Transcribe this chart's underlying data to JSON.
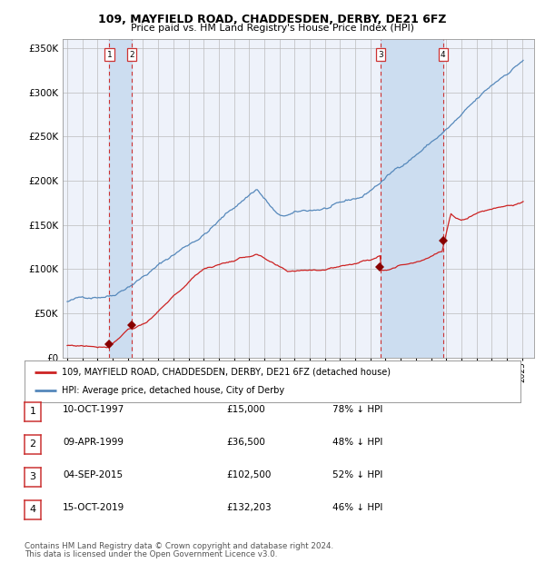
{
  "title_line1": "109, MAYFIELD ROAD, CHADDESDEN, DERBY, DE21 6FZ",
  "title_line2": "Price paid vs. HM Land Registry's House Price Index (HPI)",
  "ylim": [
    0,
    360000
  ],
  "yticks": [
    0,
    50000,
    100000,
    150000,
    200000,
    250000,
    300000,
    350000
  ],
  "xlim_start": 1994.7,
  "xlim_end": 2025.8,
  "background_color": "#ffffff",
  "plot_bg_color": "#eef2fa",
  "grid_color": "#bbbbbb",
  "hpi_color": "#5588bb",
  "price_color": "#cc2222",
  "sale_marker_color": "#880000",
  "vline_color": "#cc3333",
  "span_color": "#ccddf0",
  "transactions": [
    {
      "num": 1,
      "date_label": "10-OCT-1997",
      "year": 1997.78,
      "price": 15000,
      "pct": "78%"
    },
    {
      "num": 2,
      "date_label": "09-APR-1999",
      "year": 1999.27,
      "price": 36500,
      "pct": "48%"
    },
    {
      "num": 3,
      "date_label": "04-SEP-2015",
      "year": 2015.67,
      "price": 102500,
      "pct": "52%"
    },
    {
      "num": 4,
      "date_label": "15-OCT-2019",
      "year": 2019.79,
      "price": 132203,
      "pct": "46%"
    }
  ],
  "legend_line1": "109, MAYFIELD ROAD, CHADDESDEN, DERBY, DE21 6FZ (detached house)",
  "legend_line2": "HPI: Average price, detached house, City of Derby",
  "footer_line1": "Contains HM Land Registry data © Crown copyright and database right 2024.",
  "footer_line2": "This data is licensed under the Open Government Licence v3.0."
}
